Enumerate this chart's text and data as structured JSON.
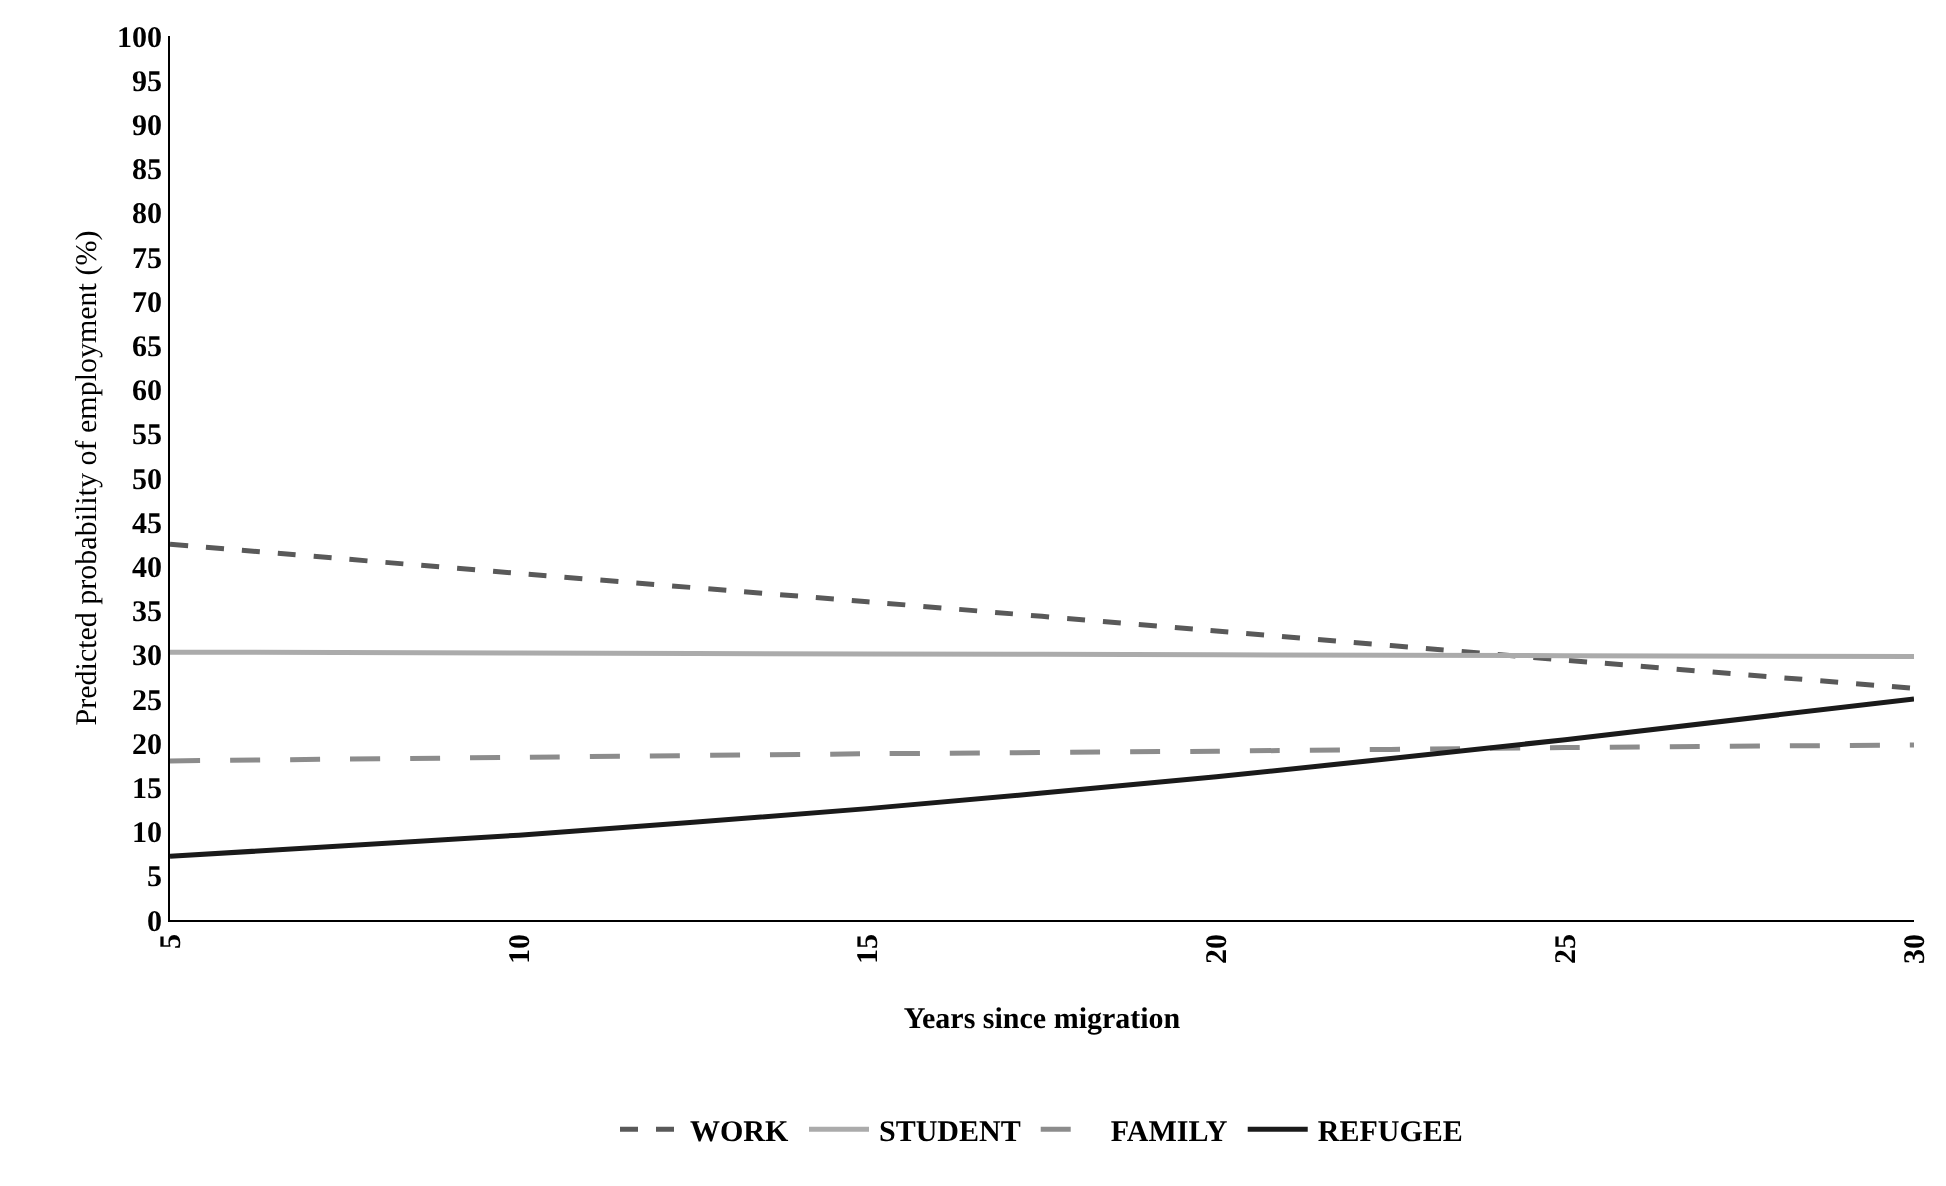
{
  "chart_data": {
    "type": "line",
    "xlabel": "Years since migration",
    "ylabel": "Predicted probability of employment (%)",
    "x": [
      5,
      10,
      15,
      20,
      25,
      30
    ],
    "series": [
      {
        "name": "WORK",
        "color": "#595959",
        "line_style": "dotted",
        "values": [
          42.5,
          39.2,
          36,
          32.7,
          29.4,
          26.2
        ]
      },
      {
        "name": "STUDENT",
        "color": "#ababab",
        "line_style": "solid",
        "values": [
          30.3,
          30.2,
          30.1,
          30,
          29.9,
          29.8
        ]
      },
      {
        "name": "FAMILY",
        "color": "#8c8c8c",
        "line_style": "dashed",
        "values": [
          18,
          18.4,
          18.8,
          19.1,
          19.5,
          19.8
        ]
      },
      {
        "name": "REFUGEE",
        "color": "#1a1a1a",
        "line_style": "solid",
        "values": [
          7.2,
          9.6,
          12.6,
          16.2,
          20.4,
          25
        ]
      }
    ],
    "xlim": [
      5,
      30
    ],
    "xticks": [
      5,
      10,
      15,
      20,
      25,
      30
    ],
    "ylim": [
      0,
      100
    ],
    "yticks": [
      0,
      5,
      10,
      15,
      20,
      25,
      30,
      35,
      40,
      45,
      50,
      55,
      60,
      65,
      70,
      75,
      80,
      85,
      90,
      95,
      100
    ],
    "grid": false,
    "legend": "bottom",
    "marker": "none"
  }
}
